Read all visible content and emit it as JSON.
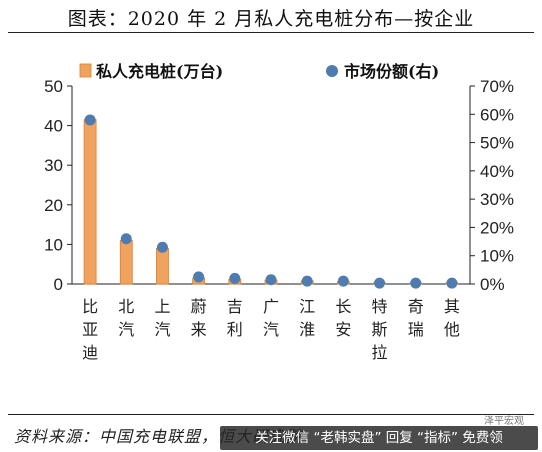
{
  "header": {
    "title": "图表：2020 年 2 月私人充电桩分布—按企业"
  },
  "footer": {
    "source": "资料来源：中国充电联盟，恒大研究院",
    "banner": "关注微信 “老韩实盘” 回复 “指标” 免费领",
    "brand": "泽平宏观"
  },
  "colors": {
    "bar": "#f0a35e",
    "bar_edge": "#e07d2a",
    "dot": "#4f7cb0",
    "axis": "#222222"
  },
  "chart_data": {
    "type": "bar",
    "categories": [
      "比亚迪",
      "北汽",
      "上汽",
      "蔚来",
      "吉利",
      "广汽",
      "江淮",
      "长安",
      "特斯拉",
      "奇瑞",
      "其他"
    ],
    "series": [
      {
        "name": "私人充电桩(万台)",
        "type": "bar",
        "axis": "left",
        "values": [
          41.5,
          11.0,
          9.0,
          1.5,
          1.2,
          1.0,
          0.8,
          0.6,
          0.3,
          0.3,
          0.3
        ]
      },
      {
        "name": "市场份额(右)",
        "type": "scatter",
        "axis": "right",
        "values": [
          58,
          16,
          13,
          2.5,
          2,
          1.5,
          1,
          1,
          0.3,
          0.3,
          0.3
        ]
      }
    ],
    "y_left": {
      "min": 0,
      "max": 50,
      "ticks": [
        "0",
        "10",
        "20",
        "30",
        "40",
        "50"
      ]
    },
    "y_right": {
      "min": 0,
      "max": 70,
      "ticks": [
        "0%",
        "10%",
        "20%",
        "30%",
        "40%",
        "50%",
        "60%",
        "70%"
      ]
    },
    "legend": "top",
    "grid": false
  }
}
